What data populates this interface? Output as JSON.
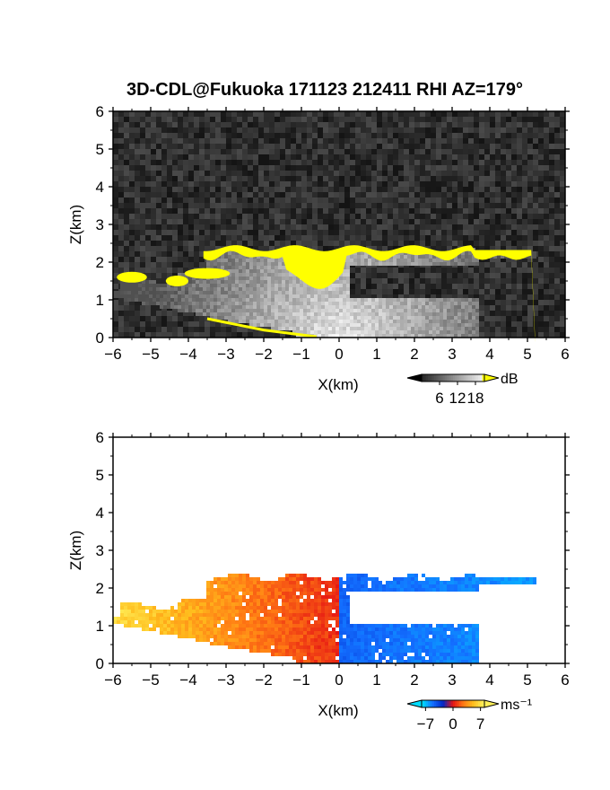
{
  "title": "3D-CDL@Fukuoka 171123 212411 RHI AZ=179°",
  "chart_data": [
    {
      "type": "heatmap",
      "name": "reflectivity",
      "xlabel": "X(km)",
      "ylabel": "Z(km)",
      "xlim": [
        -6,
        6
      ],
      "ylim": [
        0,
        6
      ],
      "xticks": [
        "−6",
        "−5",
        "−4",
        "−3",
        "−2",
        "−1",
        "0",
        "1",
        "2",
        "3",
        "4",
        "5",
        "6"
      ],
      "yticks": [
        "0",
        "1",
        "2",
        "3",
        "4",
        "5",
        "6"
      ],
      "colorbar": {
        "unit": "dB",
        "ticks": [
          "6",
          "12",
          "18"
        ],
        "range": [
          0,
          21
        ]
      },
      "features": {
        "cloud_top_km": 2.3,
        "echo_base_km": 0,
        "bright_layer": "yellow band near 2.2–2.4 km from X=−4 to 5.2 km",
        "colors": {
          "saturated": "#ffff00",
          "background_noise": "#2a2a2a"
        }
      }
    },
    {
      "type": "heatmap",
      "name": "doppler_velocity",
      "xlabel": "X(km)",
      "ylabel": "Z(km)",
      "xlim": [
        -6,
        6
      ],
      "ylim": [
        0,
        6
      ],
      "xticks": [
        "−6",
        "−5",
        "−4",
        "−3",
        "−2",
        "−1",
        "0",
        "1",
        "2",
        "3",
        "4",
        "5",
        "6"
      ],
      "yticks": [
        "0",
        "1",
        "2",
        "3",
        "4",
        "5",
        "6"
      ],
      "colorbar": {
        "unit": "ms⁻¹",
        "ticks": [
          "−7",
          "0",
          "7"
        ],
        "range": [
          -8,
          8
        ]
      },
      "features": {
        "negative_side": "blue velocities for X>0",
        "positive_side": "orange/yellow velocities for X<0",
        "colors": {
          "neg": "#1060ff",
          "zero": "#ff2020",
          "pos": "#ffe040"
        }
      }
    }
  ]
}
